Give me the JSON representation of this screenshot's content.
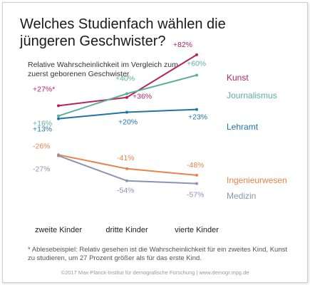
{
  "title": "Welches Studienfach wählen die jüngeren Geschwister?",
  "subtitle": "Relative Wahrscheinlichkeit im Vergleich zum zuerst geborenen Geschwister",
  "footnote": "* Ablesebeispiel: Relativ gesehen ist die Wahrscheinlichkeit für ein zweites Kind, Kunst zu studieren, um 27 Prozent größer als für das erste Kind.",
  "copyright": "©2017 Max-Planck-Institut für demografische Forschung | www.demogr.mpg.de",
  "chart_data": {
    "type": "line",
    "categories": [
      "zweite Kinder",
      "dritte Kinder",
      "vierte Kinder"
    ],
    "title": "Welches Studienfach wählen die jüngeren Geschwister?",
    "ylabel": "Relative Wahrscheinlichkeit im Vergleich zum zuerst geborenen Geschwister",
    "grid": false,
    "legend": "right",
    "series": [
      {
        "name": "Kunst",
        "color": "#b5245f",
        "values": [
          27,
          36,
          82
        ],
        "labels": [
          "+27%*",
          "+36%",
          "+82%"
        ]
      },
      {
        "name": "Journalismus",
        "color": "#5fae9a",
        "values": [
          16,
          40,
          60
        ],
        "labels": [
          "+16%",
          "+40%",
          "+60%"
        ]
      },
      {
        "name": "Lehramt",
        "color": "#1f74a6",
        "values": [
          13,
          20,
          23
        ],
        "labels": [
          "+13%",
          "+20%",
          "+23%"
        ]
      },
      {
        "name": "Ingenieurwesen",
        "color": "#e8834a",
        "values": [
          -26,
          -41,
          -48
        ],
        "labels": [
          "-26%",
          "-41%",
          "-48%"
        ]
      },
      {
        "name": "Medizin",
        "color": "#8a94b3",
        "values": [
          -27,
          -54,
          -57
        ],
        "labels": [
          "-27%",
          "-54%",
          "-57%"
        ]
      }
    ]
  }
}
